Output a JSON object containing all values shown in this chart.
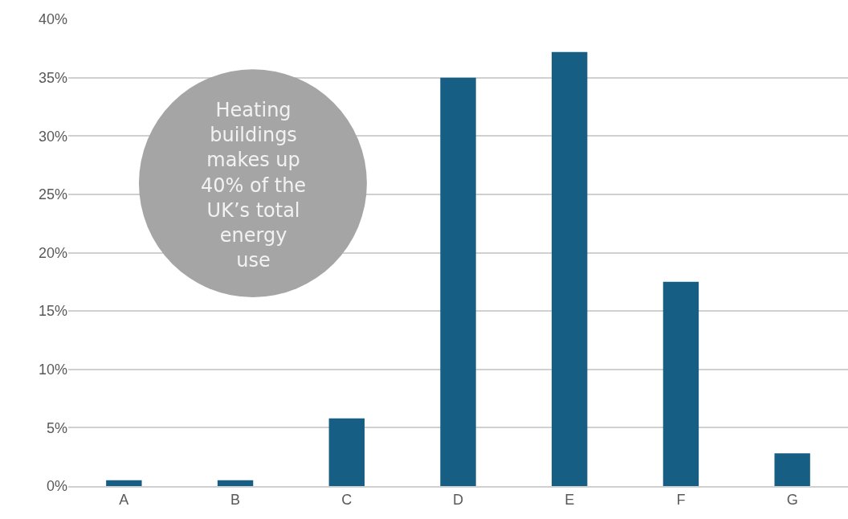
{
  "chart_data": {
    "type": "bar",
    "categories": [
      "A",
      "B",
      "C",
      "D",
      "E",
      "F",
      "G"
    ],
    "values": [
      0.5,
      0.5,
      5.8,
      35.0,
      37.2,
      17.5,
      2.8
    ],
    "color": "#165e83",
    "ylim": [
      0,
      40
    ],
    "yticks": [
      {
        "value": 0,
        "label": "0%"
      },
      {
        "value": 5,
        "label": "5%"
      },
      {
        "value": 10,
        "label": "10%"
      },
      {
        "value": 15,
        "label": "15%"
      },
      {
        "value": 20,
        "label": "20%"
      },
      {
        "value": 25,
        "label": "25%"
      },
      {
        "value": 30,
        "label": "30%"
      },
      {
        "value": 35,
        "label": "35%"
      },
      {
        "value": 40,
        "label": "40%"
      }
    ],
    "grid": "y",
    "annotations": [
      "Heating\nbuildings\nmakes up\n40% of the\nUK’s total\nenergy\nuse"
    ]
  }
}
